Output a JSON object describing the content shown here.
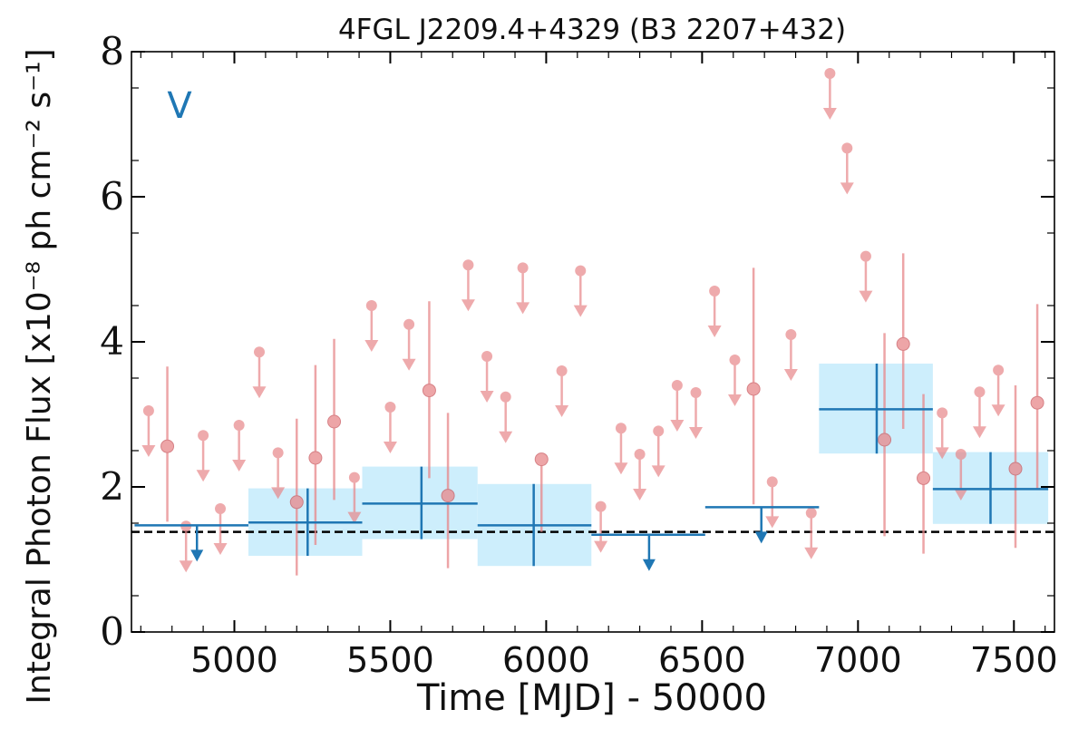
{
  "chart_data": {
    "type": "scatter",
    "title": "4FGL J2209.4+4329 (B3 2207+432)",
    "xlabel": "Time [MJD] - 50000",
    "ylabel": "Integral Photon Flux [x10⁻⁸ ph cm⁻² s⁻¹]",
    "panel_label": "V",
    "xlim": [
      4670,
      7630
    ],
    "ylim": [
      0,
      8
    ],
    "xticks": [
      5000,
      5500,
      6000,
      6500,
      7000,
      7500
    ],
    "yticks": [
      0,
      2,
      4,
      6,
      8
    ],
    "grid": false,
    "reference_level": 1.38,
    "colors": {
      "points": "#e8878a",
      "blocks": "#1f77b4",
      "band": "#cdeefc",
      "reference": "#000000"
    },
    "series": [
      {
        "marker": "circle",
        "detections": [
          {
            "x": 4785,
            "y": 2.56,
            "ylo": 1.52,
            "yhi": 3.66
          },
          {
            "x": 5200,
            "y": 1.79,
            "ylo": 0.78,
            "yhi": 2.94
          },
          {
            "x": 5260,
            "y": 2.4,
            "ylo": 1.2,
            "yhi": 3.68
          },
          {
            "x": 5320,
            "y": 2.9,
            "ylo": 1.82,
            "yhi": 4.04
          },
          {
            "x": 5625,
            "y": 3.33,
            "ylo": 2.12,
            "yhi": 4.56
          },
          {
            "x": 5685,
            "y": 1.88,
            "ylo": 0.88,
            "yhi": 3.02
          },
          {
            "x": 5985,
            "y": 2.38,
            "ylo": 1.38,
            "yhi": 2.4
          },
          {
            "x": 6665,
            "y": 3.35,
            "ylo": 1.76,
            "yhi": 5.02
          },
          {
            "x": 7085,
            "y": 2.65,
            "ylo": 1.32,
            "yhi": 4.12
          },
          {
            "x": 7145,
            "y": 3.97,
            "ylo": 2.8,
            "yhi": 5.22
          },
          {
            "x": 7210,
            "y": 2.12,
            "ylo": 1.08,
            "yhi": 3.28
          },
          {
            "x": 7505,
            "y": 2.25,
            "ylo": 1.16,
            "yhi": 3.4
          },
          {
            "x": 7575,
            "y": 3.16,
            "ylo": 1.96,
            "yhi": 4.52
          }
        ],
        "upper_limits": [
          {
            "x": 4725,
            "y": 3.05
          },
          {
            "x": 4845,
            "y": 1.46
          },
          {
            "x": 4900,
            "y": 2.71
          },
          {
            "x": 4955,
            "y": 1.7
          },
          {
            "x": 5015,
            "y": 2.85
          },
          {
            "x": 5080,
            "y": 3.86
          },
          {
            "x": 5140,
            "y": 2.47
          },
          {
            "x": 5385,
            "y": 2.13
          },
          {
            "x": 5440,
            "y": 4.5
          },
          {
            "x": 5500,
            "y": 3.1
          },
          {
            "x": 5560,
            "y": 4.24
          },
          {
            "x": 5750,
            "y": 5.06
          },
          {
            "x": 5810,
            "y": 3.8
          },
          {
            "x": 5870,
            "y": 3.24
          },
          {
            "x": 5925,
            "y": 5.02
          },
          {
            "x": 6050,
            "y": 3.6
          },
          {
            "x": 6110,
            "y": 4.98
          },
          {
            "x": 6175,
            "y": 1.73
          },
          {
            "x": 6240,
            "y": 2.81
          },
          {
            "x": 6300,
            "y": 2.45
          },
          {
            "x": 6360,
            "y": 2.77
          },
          {
            "x": 6420,
            "y": 3.4
          },
          {
            "x": 6480,
            "y": 3.3
          },
          {
            "x": 6540,
            "y": 4.7
          },
          {
            "x": 6605,
            "y": 3.75
          },
          {
            "x": 6725,
            "y": 2.07
          },
          {
            "x": 6785,
            "y": 4.1
          },
          {
            "x": 6850,
            "y": 1.64
          },
          {
            "x": 6910,
            "y": 7.7
          },
          {
            "x": 6965,
            "y": 6.67
          },
          {
            "x": 7025,
            "y": 5.18
          },
          {
            "x": 7270,
            "y": 3.02
          },
          {
            "x": 7330,
            "y": 2.45
          },
          {
            "x": 7390,
            "y": 3.31
          },
          {
            "x": 7450,
            "y": 3.61
          }
        ]
      },
      {
        "marker": "block",
        "detections": [
          {
            "x0": 5045,
            "x1": 5410,
            "xc": 5235,
            "y": 1.51,
            "ylo": 1.05,
            "yhi": 1.98
          },
          {
            "x0": 5410,
            "x1": 5780,
            "xc": 5600,
            "y": 1.77,
            "ylo": 1.28,
            "yhi": 2.28
          },
          {
            "x0": 5780,
            "x1": 6145,
            "xc": 5960,
            "y": 1.47,
            "ylo": 0.91,
            "yhi": 2.04
          },
          {
            "x0": 6875,
            "x1": 7240,
            "xc": 7060,
            "y": 3.07,
            "ylo": 2.46,
            "yhi": 3.7
          },
          {
            "x0": 7240,
            "x1": 7610,
            "xc": 7425,
            "y": 1.97,
            "ylo": 1.49,
            "yhi": 2.48
          }
        ],
        "upper_limits": [
          {
            "x0": 4680,
            "x1": 5045,
            "xc": 4880,
            "y": 1.47
          },
          {
            "x0": 6145,
            "x1": 6510,
            "xc": 6330,
            "y": 1.34
          },
          {
            "x0": 6510,
            "x1": 6875,
            "xc": 6690,
            "y": 1.72
          }
        ]
      }
    ]
  }
}
